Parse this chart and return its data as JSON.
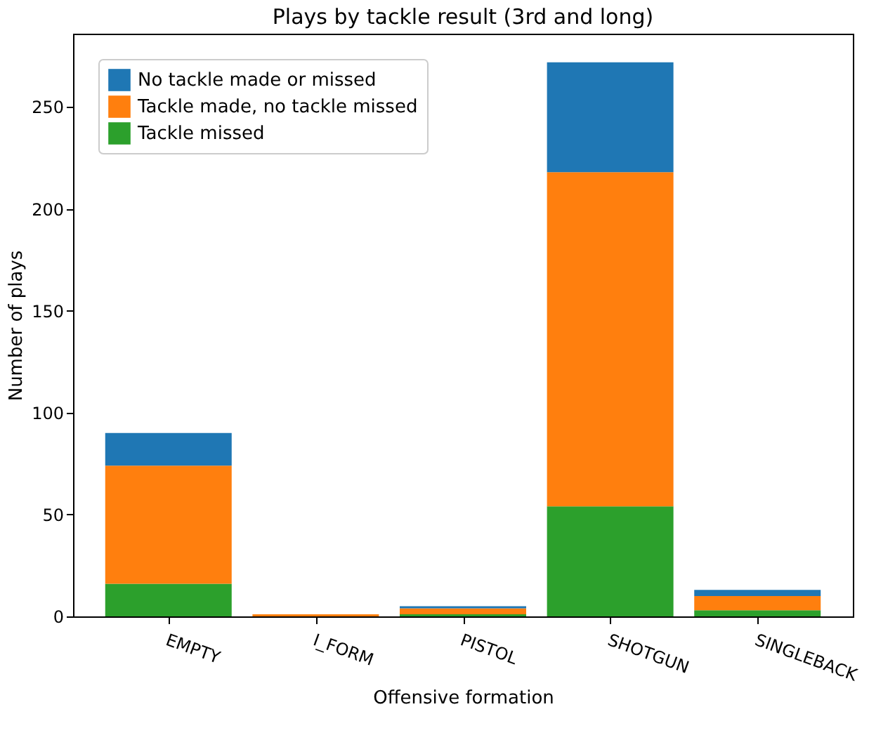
{
  "chart_data": {
    "type": "bar",
    "title": "Plays by tackle result (3rd and long)",
    "xlabel": "Offensive formation",
    "ylabel": "Number of plays",
    "categories": [
      "EMPTY",
      "I_FORM",
      "PISTOL",
      "SHOTGUN",
      "SINGLEBACK"
    ],
    "stacked": true,
    "series": [
      {
        "name": "Tackle missed",
        "color": "#2ca02c",
        "values": [
          16,
          0,
          1,
          54,
          3
        ]
      },
      {
        "name": "Tackle made, no tackle missed",
        "color": "#ff7f0e",
        "values": [
          58,
          1,
          3,
          164,
          7
        ]
      },
      {
        "name": "No tackle made or missed",
        "color": "#1f77b4",
        "values": [
          16,
          0,
          1,
          54,
          3
        ]
      }
    ],
    "ylim": [
      0,
      286
    ],
    "yticks": [
      0,
      50,
      100,
      150,
      200,
      250
    ],
    "grid": false,
    "legend": "top left"
  }
}
